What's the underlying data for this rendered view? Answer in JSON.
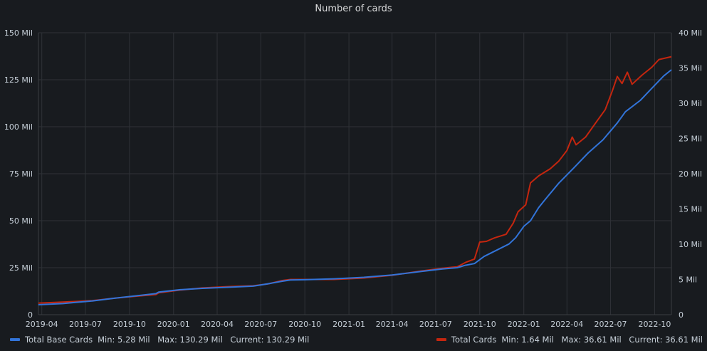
{
  "panel": {
    "title": "Number of cards"
  },
  "legend": [
    {
      "name": "Total Base Cards",
      "color": "#3274d9",
      "min": "Min: 5.28 Mil",
      "max": "Max: 130.29 Mil",
      "current": "Current: 130.29 Mil"
    },
    {
      "name": "Total Cards",
      "color": "#c4260f",
      "min": "Min: 1.64 Mil",
      "max": "Max: 36.61 Mil",
      "current": "Current: 36.61 Mil"
    }
  ],
  "chart_data": {
    "type": "line",
    "title": "Number of cards",
    "x_ticks": [
      "2019-04",
      "2019-07",
      "2019-10",
      "2020-01",
      "2020-04",
      "2020-07",
      "2020-10",
      "2021-01",
      "2021-04",
      "2021-07",
      "2021-10",
      "2022-01",
      "2022-04",
      "2022-07",
      "2022-10"
    ],
    "y_left": {
      "ylim": [
        0,
        150
      ],
      "ticks": [
        "0",
        "25 Mil",
        "50 Mil",
        "75 Mil",
        "100 Mil",
        "125 Mil",
        "150 Mil"
      ],
      "unit": "Mil"
    },
    "y_right": {
      "ylim": [
        0,
        40
      ],
      "ticks": [
        "0",
        "5 Mil",
        "10 Mil",
        "15 Mil",
        "20 Mil",
        "25 Mil",
        "30 Mil",
        "35 Mil",
        "40 Mil"
      ],
      "unit": "Mil"
    },
    "grid": true,
    "legend_position": "bottom",
    "series": [
      {
        "name": "Total Base Cards",
        "axis": "left",
        "color": "#3274d9",
        "points": [
          [
            "2019-03-25",
            5.3
          ],
          [
            "2019-05-15",
            5.9
          ],
          [
            "2019-06-10",
            6.5
          ],
          [
            "2019-07-15",
            7.3
          ],
          [
            "2019-09-01",
            8.8
          ],
          [
            "2019-10-20",
            10.2
          ],
          [
            "2019-11-25",
            11.2
          ],
          [
            "2019-12-01",
            12.0
          ],
          [
            "2020-01-15",
            13.3
          ],
          [
            "2020-03-01",
            14.0
          ],
          [
            "2020-05-01",
            14.7
          ],
          [
            "2020-06-15",
            15.2
          ],
          [
            "2020-07-15",
            16.4
          ],
          [
            "2020-08-15",
            17.8
          ],
          [
            "2020-09-01",
            18.5
          ],
          [
            "2020-10-01",
            18.6
          ],
          [
            "2020-12-01",
            19.1
          ],
          [
            "2021-02-01",
            19.9
          ],
          [
            "2021-04-01",
            21.1
          ],
          [
            "2021-06-01",
            23.0
          ],
          [
            "2021-07-15",
            24.3
          ],
          [
            "2021-08-15",
            25.0
          ],
          [
            "2021-09-01",
            26.3
          ],
          [
            "2021-09-20",
            27.2
          ],
          [
            "2021-10-10",
            31.0
          ],
          [
            "2021-11-01",
            33.8
          ],
          [
            "2021-12-01",
            37.6
          ],
          [
            "2021-12-15",
            41.0
          ],
          [
            "2022-01-01",
            47.0
          ],
          [
            "2022-01-15",
            50.0
          ],
          [
            "2022-02-01",
            57.0
          ],
          [
            "2022-02-20",
            63.0
          ],
          [
            "2022-03-15",
            70.0
          ],
          [
            "2022-04-15",
            78.0
          ],
          [
            "2022-05-15",
            86.0
          ],
          [
            "2022-06-15",
            93.0
          ],
          [
            "2022-07-15",
            102.0
          ],
          [
            "2022-08-01",
            108.0
          ],
          [
            "2022-09-01",
            114.0
          ],
          [
            "2022-10-01",
            122.0
          ],
          [
            "2022-10-20",
            127.0
          ],
          [
            "2022-11-05",
            130.3
          ]
        ]
      },
      {
        "name": "Total Cards",
        "axis": "right",
        "color": "#c4260f",
        "points": [
          [
            "2019-03-25",
            1.64
          ],
          [
            "2019-05-15",
            1.8
          ],
          [
            "2019-06-10",
            1.87
          ],
          [
            "2019-07-15",
            2.0
          ],
          [
            "2019-09-01",
            2.35
          ],
          [
            "2019-10-20",
            2.65
          ],
          [
            "2019-11-25",
            2.85
          ],
          [
            "2019-12-01",
            3.1
          ],
          [
            "2020-01-15",
            3.5
          ],
          [
            "2020-03-01",
            3.8
          ],
          [
            "2020-05-01",
            4.0
          ],
          [
            "2020-06-15",
            4.1
          ],
          [
            "2020-07-15",
            4.35
          ],
          [
            "2020-08-15",
            4.85
          ],
          [
            "2020-09-01",
            5.0
          ],
          [
            "2020-10-01",
            5.0
          ],
          [
            "2020-12-01",
            5.0
          ],
          [
            "2021-02-01",
            5.2
          ],
          [
            "2021-04-01",
            5.6
          ],
          [
            "2021-06-01",
            6.2
          ],
          [
            "2021-07-15",
            6.6
          ],
          [
            "2021-08-15",
            6.8
          ],
          [
            "2021-09-01",
            7.4
          ],
          [
            "2021-09-20",
            7.9
          ],
          [
            "2021-10-01",
            10.3
          ],
          [
            "2021-10-15",
            10.4
          ],
          [
            "2021-11-01",
            10.9
          ],
          [
            "2021-11-25",
            11.4
          ],
          [
            "2021-12-10",
            13.0
          ],
          [
            "2021-12-20",
            14.6
          ],
          [
            "2022-01-05",
            15.6
          ],
          [
            "2022-01-15",
            18.7
          ],
          [
            "2022-02-01",
            19.7
          ],
          [
            "2022-02-25",
            20.7
          ],
          [
            "2022-03-15",
            21.8
          ],
          [
            "2022-04-01",
            23.3
          ],
          [
            "2022-04-12",
            25.2
          ],
          [
            "2022-04-20",
            24.1
          ],
          [
            "2022-05-10",
            25.2
          ],
          [
            "2022-06-01",
            27.3
          ],
          [
            "2022-06-20",
            29.1
          ],
          [
            "2022-07-05",
            31.8
          ],
          [
            "2022-07-15",
            33.8
          ],
          [
            "2022-07-25",
            32.8
          ],
          [
            "2022-08-05",
            34.4
          ],
          [
            "2022-08-15",
            32.7
          ],
          [
            "2022-09-05",
            34.0
          ],
          [
            "2022-09-25",
            35.1
          ],
          [
            "2022-10-10",
            36.2
          ],
          [
            "2022-11-05",
            36.61
          ]
        ]
      }
    ]
  }
}
